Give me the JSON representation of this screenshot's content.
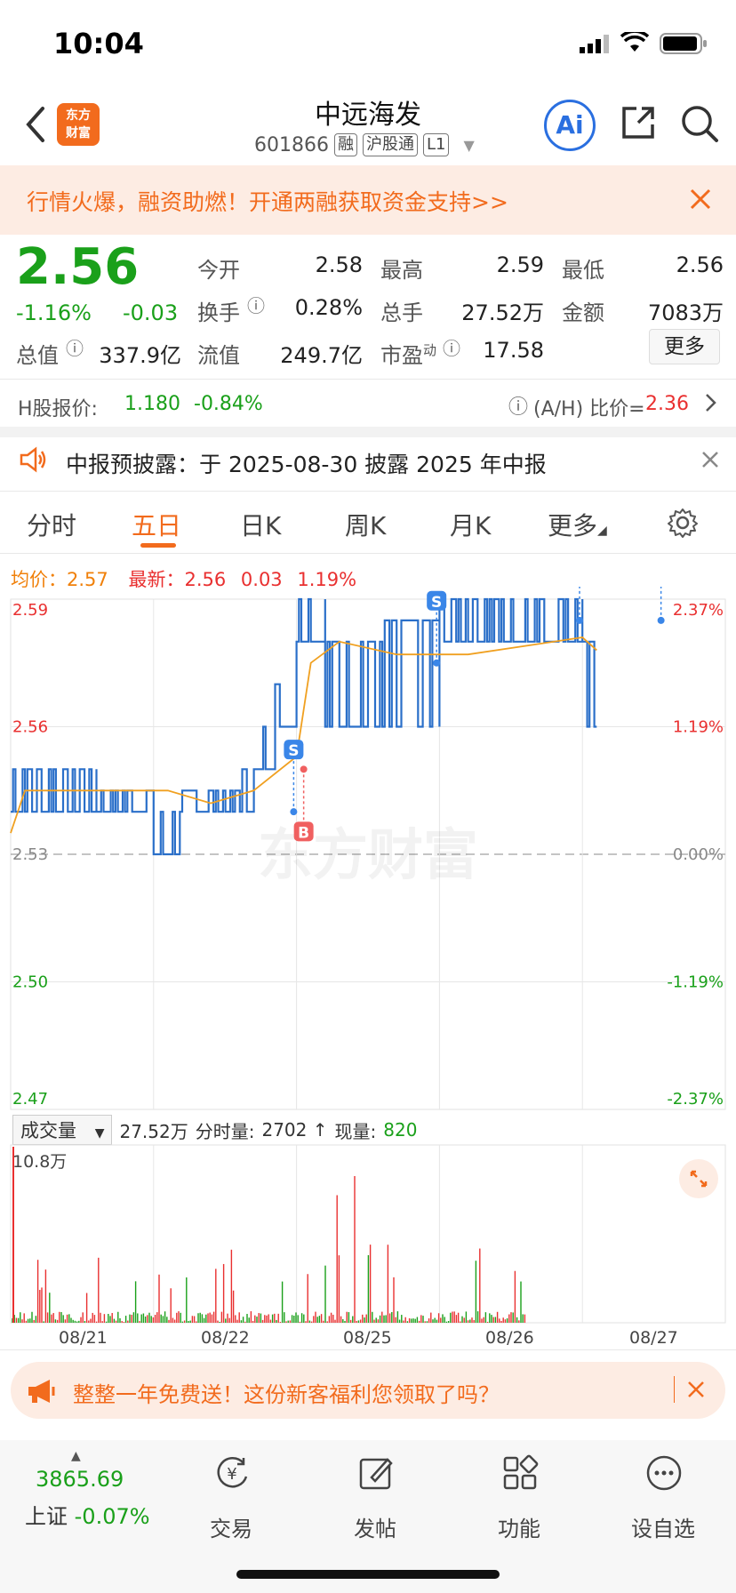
{
  "status_bar": {
    "time": "10:04"
  },
  "header": {
    "title": "中远海发",
    "code": "601866",
    "tags": [
      "融",
      "沪股通",
      "L1"
    ],
    "logo_text": "东方\n财富",
    "ai_label": "Ai"
  },
  "banner": {
    "text": "行情火爆，融资助燃！开通两融获取资金支持>>"
  },
  "quote": {
    "price": "2.56",
    "change_pct": "-1.16%",
    "change": "-0.03",
    "fields": [
      {
        "label": "今开",
        "value": "2.58"
      },
      {
        "label": "最高",
        "value": "2.59"
      },
      {
        "label": "最低",
        "value": "2.56"
      },
      {
        "label": "换手",
        "value": "0.28%"
      },
      {
        "label": "总手",
        "value": "27.52万"
      },
      {
        "label": "金额",
        "value": "7083万"
      },
      {
        "label": "总值",
        "value": "337.9亿"
      },
      {
        "label": "流值",
        "value": "249.7亿"
      },
      {
        "label": "市盈",
        "label_sup": "动",
        "value": "17.58"
      }
    ],
    "more_button": "更多"
  },
  "h_share": {
    "label": "H股报价:",
    "price": "1.180",
    "change_pct": "-0.84%",
    "ah_label": "(A/H) 比价=",
    "ah_value": "2.36"
  },
  "notice": {
    "text": "中报预披露：于 2025-08-30 披露 2025 年中报"
  },
  "tabs": [
    "分时",
    "五日",
    "日K",
    "周K",
    "月K",
    "更多"
  ],
  "active_tab": "五日",
  "legend": {
    "avg_label": "均价：",
    "avg_value": "2.57",
    "latest_label": "最新：",
    "latest_value": "2.56",
    "latest_change": "0.03",
    "latest_pct": "1.19%"
  },
  "watermark": "东方财富",
  "chart_data": {
    "type": "line",
    "title": "",
    "y_left_ticks": [
      "2.59",
      "2.56",
      "2.53",
      "2.50",
      "2.47"
    ],
    "y_right_ticks": [
      "2.37%",
      "1.19%",
      "0.00%",
      "-1.19%",
      "-2.37%"
    ],
    "ylim": [
      2.47,
      2.59
    ],
    "prev_close": 2.53,
    "x_dates": [
      "08/21",
      "08/22",
      "08/25",
      "08/26",
      "08/27"
    ],
    "markers": [
      {
        "type": "S",
        "day": 1,
        "frac": 0.98,
        "price": 2.54
      },
      {
        "type": "B",
        "day": 1,
        "frac": 1.05,
        "price": 2.55
      },
      {
        "type": "S",
        "day": 2,
        "frac": 0.98,
        "price": 2.575
      },
      {
        "type": "S",
        "day": 3,
        "frac": 0.98,
        "price": 2.585
      },
      {
        "type": "S",
        "day": 4,
        "frac": 0.55,
        "price": 2.585
      }
    ]
  },
  "volume": {
    "selector": "成交量",
    "total": "27.52万",
    "period_label": "分时量:",
    "period_value": "2702",
    "now_label": "现量:",
    "now_value": "820",
    "max_label": "10.8万"
  },
  "promo": {
    "text": "整整一年免费送！这份新客福利您领取了吗？"
  },
  "bottom_nav": {
    "index_value": "3865.69",
    "index_name": "上证",
    "index_change": "-0.07%",
    "items": [
      "交易",
      "发帖",
      "功能",
      "设自选"
    ]
  },
  "colors": {
    "accent": "#f26b1d",
    "up": "#e93030",
    "down": "#1aa01a",
    "line": "#2a6fc9",
    "avg": "#f0a020"
  }
}
